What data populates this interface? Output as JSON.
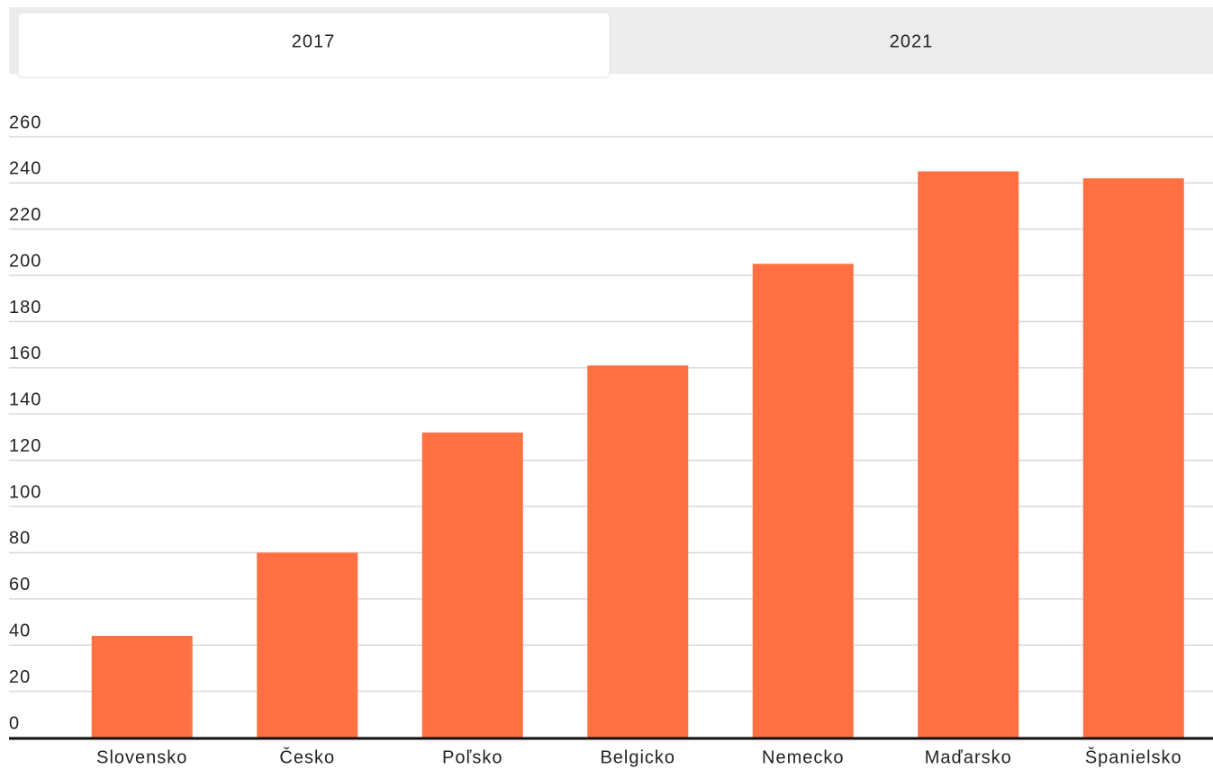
{
  "tabs": [
    "2017",
    "2021"
  ],
  "chart_data": {
    "type": "bar",
    "categories": [
      "Slovensko",
      "Česko",
      "Poľsko",
      "Belgicko",
      "Nemecko",
      "Maďarsko",
      "Španielsko"
    ],
    "values": [
      44,
      80,
      132,
      161,
      205,
      245,
      242
    ],
    "color": "#ff7043",
    "ylim": [
      0,
      260
    ],
    "yticks": [
      0,
      20,
      40,
      60,
      80,
      100,
      120,
      140,
      160,
      180,
      200,
      220,
      240,
      260
    ],
    "grid": true
  }
}
